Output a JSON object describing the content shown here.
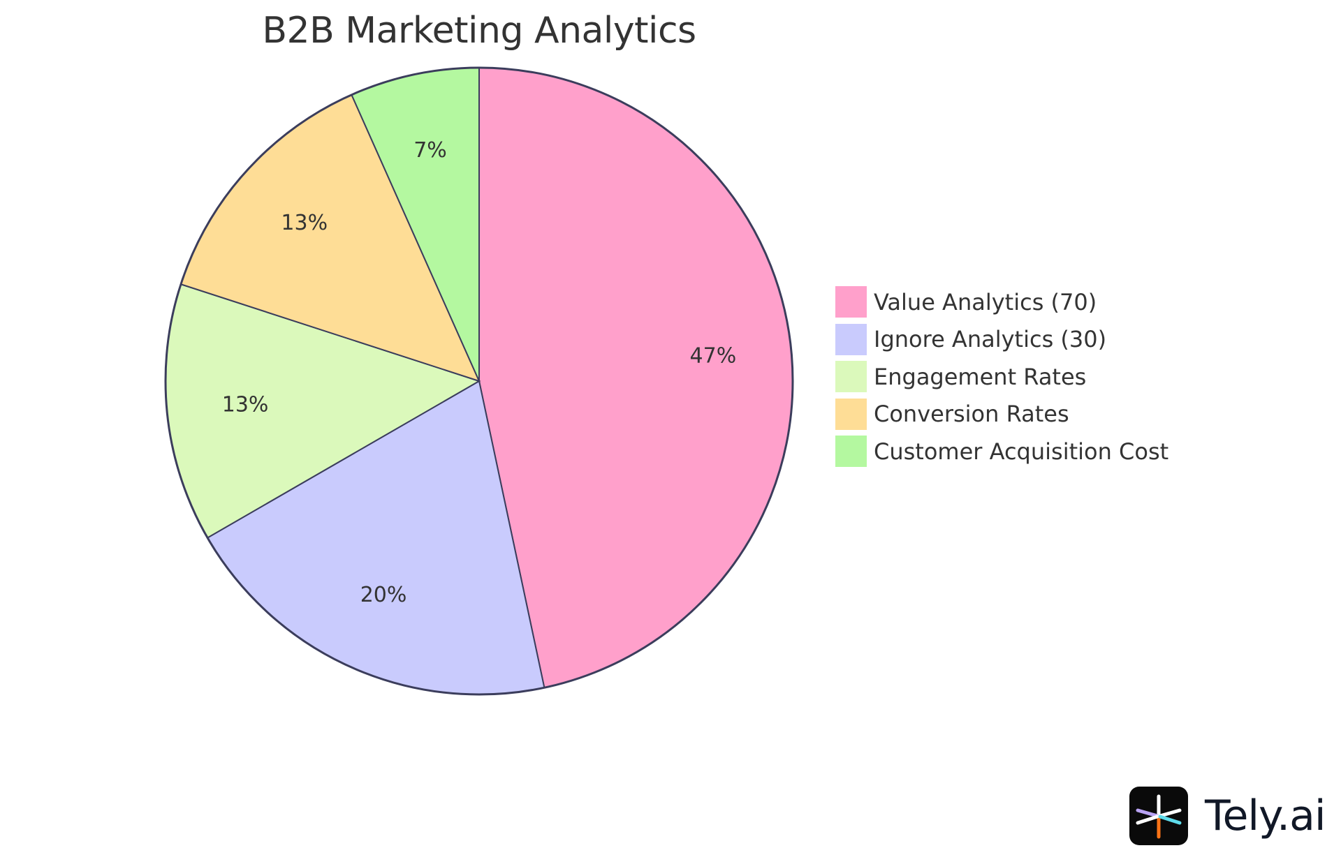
{
  "title": "B2B Marketing Analytics",
  "chart_data": {
    "type": "pie",
    "title": "B2B Marketing Analytics",
    "categories": [
      "Value Analytics (70)",
      "Ignore Analytics (30)",
      "Engagement Rates",
      "Conversion Rates",
      "Customer Acquisition Cost"
    ],
    "values": [
      70,
      30,
      20,
      20,
      10
    ],
    "percent_labels": [
      "47%",
      "20%",
      "13%",
      "13%",
      "7%"
    ],
    "colors": [
      "#FFA0CB",
      "#C9CBFD",
      "#DBF9BB",
      "#FEDD96",
      "#B4F8A0"
    ],
    "stroke_color": "#3B3D5C",
    "legend_position": "right",
    "start_angle": "12 o'clock, clockwise"
  },
  "legend": {
    "items": [
      {
        "label": "Value Analytics (70)",
        "color": "#FFA0CB"
      },
      {
        "label": "Ignore Analytics (30)",
        "color": "#C9CBFD"
      },
      {
        "label": "Engagement Rates",
        "color": "#DBF9BB"
      },
      {
        "label": "Conversion Rates",
        "color": "#FEDD96"
      },
      {
        "label": "Customer Acquisition Cost",
        "color": "#B4F8A0"
      }
    ]
  },
  "brand": {
    "name": "Tely.ai",
    "icon": "tely-asterisk-logo-icon"
  }
}
